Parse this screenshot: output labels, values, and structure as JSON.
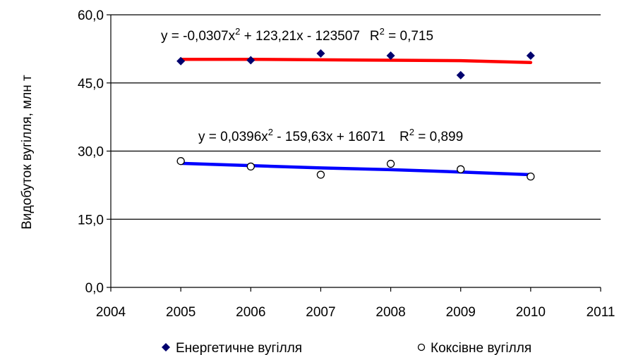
{
  "chart_data": {
    "type": "scatter",
    "title": "",
    "xlabel": "",
    "ylabel": "Видобуток вугілля, млн т",
    "xlim": [
      2004,
      2011
    ],
    "ylim": [
      0,
      60
    ],
    "x_ticks": [
      "2004",
      "2005",
      "2006",
      "2007",
      "2008",
      "2009",
      "2010",
      "2011"
    ],
    "y_ticks": [
      "0,0",
      "15,0",
      "30,0",
      "45,0",
      "60,0"
    ],
    "grid": "horizontal",
    "legend_position": "bottom",
    "series": [
      {
        "name": "Енергетичне вугілля",
        "marker": "diamond",
        "color": "#00006e",
        "x": [
          2005,
          2006,
          2007,
          2008,
          2009,
          2010
        ],
        "y": [
          49.8,
          50.0,
          51.5,
          51.0,
          46.7,
          51.0
        ],
        "trendline": {
          "type": "polynomial",
          "color": "#ff0000",
          "coefficients": [
            -0.0307,
            123.21,
            -123507
          ],
          "equation": "y = -0,0307x",
          "equation_rest": " + 123,21x - 123507",
          "r2_label": "R",
          "r2_value": " = 0,715",
          "exp": "2",
          "line_y": [
            50.2,
            50.2,
            50.1,
            50.0,
            49.9,
            49.5
          ]
        }
      },
      {
        "name": "Коксівне вугілля",
        "marker": "circle",
        "color": "#000000",
        "x": [
          2005,
          2006,
          2007,
          2008,
          2009,
          2010
        ],
        "y": [
          27.8,
          26.6,
          24.8,
          27.2,
          26.0,
          24.4
        ],
        "trendline": {
          "type": "polynomial",
          "color": "#0000ff",
          "coefficients": [
            0.0396,
            -159.63,
            16071
          ],
          "equation": "y = 0,0396x",
          "equation_rest": " - 159,63x + 16071",
          "r2_label": "R",
          "r2_value": " = 0,899",
          "exp": "2",
          "line_y": [
            27.3,
            26.8,
            26.3,
            25.9,
            25.4,
            24.8
          ]
        }
      }
    ]
  }
}
